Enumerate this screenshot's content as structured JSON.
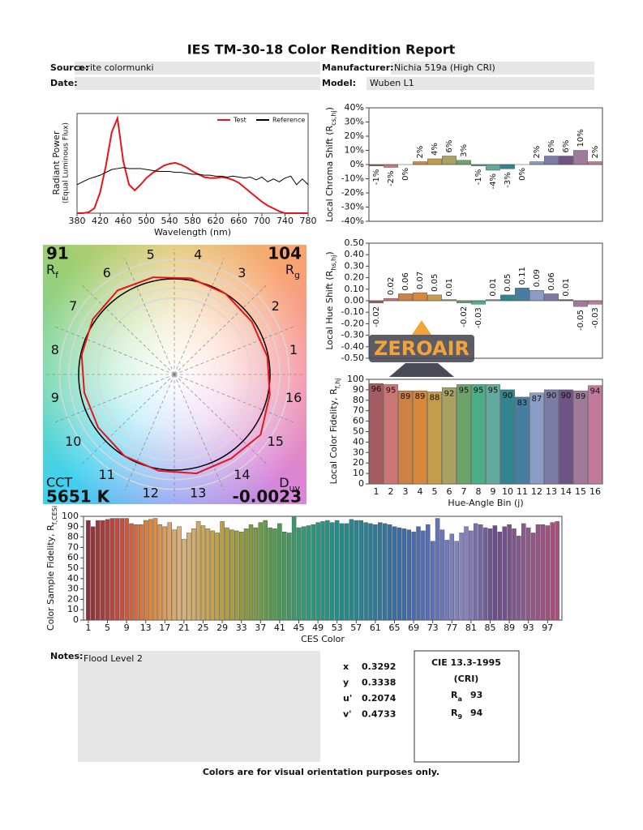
{
  "title": "IES TM-30-18 Color Rendition Report",
  "fields": [
    {
      "label": "Source:",
      "value": "x-rite colormunki"
    },
    {
      "label": "Manufacturer:",
      "value": "Nichia 519a (High CRI)"
    },
    {
      "label": "Date:"
    },
    {
      "label": "Model:",
      "value": "Wuben L1"
    }
  ],
  "chart_data": [
    {
      "type": "line",
      "ylabel": [
        "Radiant Power",
        "(Equal Luminous Flux)"
      ],
      "xlabel": "Wavelength (nm)",
      "legend": "upper right",
      "x": [
        380,
        390,
        400,
        410,
        420,
        430,
        440,
        450,
        460,
        470,
        480,
        490,
        500,
        510,
        520,
        530,
        540,
        550,
        560,
        570,
        580,
        590,
        600,
        610,
        620,
        630,
        640,
        650,
        660,
        670,
        680,
        690,
        700,
        710,
        720,
        730,
        740,
        750,
        760,
        770,
        780
      ],
      "series": [
        {
          "name": "Test",
          "color": "#e8141c",
          "values": [
            0,
            0,
            0.01,
            0.05,
            0.22,
            0.5,
            0.85,
            1.0,
            0.55,
            0.3,
            0.24,
            0.3,
            0.37,
            0.42,
            0.46,
            0.5,
            0.52,
            0.53,
            0.51,
            0.48,
            0.44,
            0.41,
            0.38,
            0.37,
            0.37,
            0.38,
            0.37,
            0.35,
            0.32,
            0.27,
            0.22,
            0.17,
            0.12,
            0.08,
            0.05,
            0.02,
            0,
            0,
            0,
            0,
            0
          ]
        },
        {
          "name": "Reference",
          "color": "#000000",
          "values": [
            0.3,
            0.33,
            0.36,
            0.38,
            0.4,
            0.43,
            0.46,
            0.47,
            0.48,
            0.47,
            0.47,
            0.47,
            0.46,
            0.45,
            0.44,
            0.44,
            0.44,
            0.43,
            0.43,
            0.42,
            0.41,
            0.41,
            0.4,
            0.4,
            0.39,
            0.39,
            0.38,
            0.39,
            0.38,
            0.37,
            0.38,
            0.35,
            0.38,
            0.33,
            0.36,
            0.33,
            0.37,
            0.39,
            0.3,
            0.36,
            0.3
          ]
        }
      ],
      "xlim": [
        380,
        780
      ],
      "xticks": [
        380,
        420,
        460,
        500,
        540,
        580,
        620,
        660,
        700,
        740,
        780
      ],
      "ylim": [
        0,
        1.05
      ]
    },
    {
      "type": "bar",
      "ylabel": {
        "text": "Local Chroma Shift (R",
        "sub": "cs,hj",
        "end": ")"
      },
      "values": [
        -1,
        -2,
        0,
        2,
        4,
        6,
        3,
        -1,
        -4,
        -3,
        0,
        2,
        6,
        6,
        10,
        2
      ],
      "value_labels": [
        "-1%",
        "-2%",
        "0%",
        "2%",
        "4%",
        "6%",
        "3%",
        "-1%",
        "-4%",
        "-3%",
        "0%",
        "2%",
        "6%",
        "6%",
        "10%",
        "2%"
      ],
      "colors": [
        "#a35c60",
        "#cc7675",
        "#cc8145",
        "#d8883a",
        "#c59c4c",
        "#a8a15f",
        "#6da36a",
        "#4bae87",
        "#64a9a0",
        "#32848e",
        "#467ea2",
        "#8b9cc6",
        "#7c7ba4",
        "#6e5484",
        "#a07a9a",
        "#c17a9b"
      ],
      "ylim": [
        -40,
        40
      ],
      "yticks": [
        {
          "value": -40,
          "label": "-40%"
        },
        {
          "value": -30,
          "label": "-30%"
        },
        {
          "value": -20,
          "label": "-20%"
        },
        {
          "value": -10,
          "label": "-10%"
        },
        {
          "value": 0,
          "label": "0%"
        },
        {
          "value": 10,
          "label": "10%"
        },
        {
          "value": 20,
          "label": "20%"
        },
        {
          "value": 30,
          "label": "30%"
        },
        {
          "value": 40,
          "label": "40%"
        }
      ]
    },
    {
      "type": "bar",
      "ylabel": {
        "text": "Local Hue Shift (R",
        "sub": "hs,hj",
        "end": ")"
      },
      "values": [
        -0.02,
        0.02,
        0.06,
        0.07,
        0.05,
        0.01,
        -0.02,
        -0.03,
        0.01,
        0.05,
        0.11,
        0.09,
        0.06,
        0.01,
        -0.05,
        -0.03
      ],
      "value_labels": [
        "-0.02",
        "0.02",
        "0.06",
        "0.07",
        "0.05",
        "0.01",
        "-0.02",
        "-0.03",
        "0.01",
        "0.05",
        "0.11",
        "0.09",
        "0.06",
        "0.01",
        "-0.05",
        "-0.03"
      ],
      "colors": [
        "#a35c60",
        "#cc7675",
        "#cc8145",
        "#d8883a",
        "#c59c4c",
        "#a8a15f",
        "#6da36a",
        "#4bae87",
        "#64a9a0",
        "#32848e",
        "#467ea2",
        "#8b9cc6",
        "#7c7ba4",
        "#6e5484",
        "#a07a9a",
        "#c17a9b"
      ],
      "ylim": [
        -0.5,
        0.5
      ],
      "yticks": [
        {
          "value": -0.5,
          "label": "-0.50"
        },
        {
          "value": -0.4,
          "label": "-0.40"
        },
        {
          "value": -0.3,
          "label": "-0.30"
        },
        {
          "value": -0.2,
          "label": "-0.20"
        },
        {
          "value": -0.1,
          "label": "-0.10"
        },
        {
          "value": 0,
          "label": "0.00"
        },
        {
          "value": 0.1,
          "label": "0.10"
        },
        {
          "value": 0.2,
          "label": "0.20"
        },
        {
          "value": 0.3,
          "label": "0.30"
        },
        {
          "value": 0.4,
          "label": "0.40"
        },
        {
          "value": 0.5,
          "label": "0.50"
        }
      ]
    },
    {
      "type": "bar",
      "ylabel": {
        "text": "Local Color Fidelity, R",
        "sub": "f,hj"
      },
      "xlabel": "Hue-Angle Bin (j)",
      "categories": [
        "1",
        "2",
        "3",
        "4",
        "5",
        "6",
        "7",
        "8",
        "9",
        "10",
        "11",
        "12",
        "13",
        "14",
        "15",
        "16"
      ],
      "values": [
        96,
        95,
        89,
        89,
        88,
        92,
        95,
        95,
        95,
        90,
        83,
        87,
        90,
        90,
        89,
        94
      ],
      "colors": [
        "#a35c60",
        "#cc7675",
        "#cc8145",
        "#d8883a",
        "#c59c4c",
        "#a8a15f",
        "#6da36a",
        "#4bae87",
        "#64a9a0",
        "#32848e",
        "#467ea2",
        "#8b9cc6",
        "#7c7ba4",
        "#6e5484",
        "#a07a9a",
        "#c17a9b"
      ],
      "ylim": [
        0,
        100
      ],
      "yticks": [
        0,
        10,
        20,
        30,
        40,
        50,
        60,
        70,
        80,
        90,
        100
      ]
    },
    {
      "type": "bar",
      "ylabel": {
        "text": "Color Sample Fidelity, R",
        "sub": "f,CESi"
      },
      "xlabel": "CES Color",
      "x": [
        1,
        2,
        3,
        4,
        5,
        6,
        7,
        8,
        9,
        10,
        11,
        12,
        13,
        14,
        15,
        16,
        17,
        18,
        19,
        20,
        21,
        22,
        23,
        24,
        25,
        26,
        27,
        28,
        29,
        30,
        31,
        32,
        33,
        34,
        35,
        36,
        37,
        38,
        39,
        40,
        41,
        42,
        43,
        44,
        45,
        46,
        47,
        48,
        49,
        50,
        51,
        52,
        53,
        54,
        55,
        56,
        57,
        58,
        59,
        60,
        61,
        62,
        63,
        64,
        65,
        66,
        67,
        68,
        69,
        70,
        71,
        72,
        73,
        74,
        75,
        76,
        77,
        78,
        79,
        80,
        81,
        82,
        83,
        84,
        85,
        86,
        87,
        88,
        89,
        90,
        91,
        92,
        93,
        94,
        95,
        96,
        97,
        98,
        99
      ],
      "values": [
        96,
        90,
        96,
        96,
        97,
        98,
        98,
        98,
        98,
        93,
        92,
        92,
        96,
        97,
        98,
        92,
        90,
        94,
        87,
        90,
        78,
        84,
        88,
        95,
        91,
        88,
        86,
        84,
        95,
        89,
        87,
        86,
        85,
        88,
        92,
        89,
        94,
        96,
        89,
        88,
        93,
        85,
        84,
        100,
        89,
        90,
        91,
        92,
        94,
        95,
        96,
        94,
        96,
        93,
        93,
        97,
        96,
        96,
        94,
        93,
        92,
        94,
        93,
        92,
        90,
        89,
        88,
        87,
        85,
        90,
        86,
        92,
        76,
        98,
        87,
        77,
        83,
        76,
        84,
        90,
        86,
        93,
        92,
        89,
        88,
        91,
        85,
        90,
        92,
        88,
        81,
        93,
        89,
        84,
        92,
        92,
        91,
        94,
        95
      ],
      "color_stops": [
        "#8c2f38",
        "#c84a40",
        "#e0883a",
        "#d9b37a",
        "#c8a248",
        "#8f9a3c",
        "#4e9a52",
        "#2e9a78",
        "#1f8f8a",
        "#2a7f96",
        "#3a6aa6",
        "#5c6fb8",
        "#8a86c2",
        "#6a4c8c",
        "#8c5a8e",
        "#b04a7a"
      ],
      "xlim": [
        0,
        100
      ],
      "xticks": [
        1,
        5,
        9,
        13,
        17,
        21,
        25,
        29,
        33,
        37,
        41,
        45,
        49,
        53,
        57,
        61,
        65,
        69,
        73,
        77,
        81,
        85,
        89,
        93,
        97
      ],
      "ylim": [
        0,
        100
      ],
      "yticks": [
        0,
        10,
        20,
        30,
        40,
        50,
        60,
        70,
        80,
        90,
        100
      ]
    }
  ],
  "vector_graphic": {
    "rf_value": 91,
    "rf_label": "R",
    "rf_sub": "f",
    "rg_value": 104,
    "rg_label": "R",
    "rg_sub": "g",
    "cct_label": "CCT",
    "cct_value": "5651 K",
    "duv_label": "D",
    "duv_sub": "uv",
    "duv_value": -0.0023,
    "bins": [
      "1",
      "2",
      "3",
      "4",
      "5",
      "6",
      "7",
      "8",
      "9",
      "10",
      "11",
      "12",
      "13",
      "14",
      "15",
      "16"
    ]
  },
  "notes": {
    "label": "Notes:",
    "text": "Flood Level 2"
  },
  "colorimetry": [
    {
      "label": "x",
      "value": 0.3292
    },
    {
      "label": "y",
      "value": 0.3338
    },
    {
      "label": "u'",
      "value": 0.2074
    },
    {
      "label": "v'",
      "value": 0.4733
    }
  ],
  "cri": {
    "title": "CIE 13.3-1995",
    "subtitle": "(CRI)",
    "ra": {
      "label": "R",
      "sub": "a",
      "value": 93
    },
    "r9": {
      "label": "R",
      "sub": "9",
      "value": 94
    }
  },
  "watermark": "ZEROAIR",
  "footer": "Colors are for visual orientation purposes only."
}
